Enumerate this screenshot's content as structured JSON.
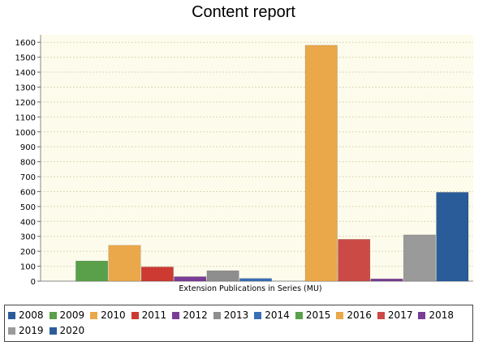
{
  "chart_data": {
    "type": "bar",
    "title": "Content report",
    "xlabel": "Extension Publications in Series (MU)",
    "ylabel": "",
    "ylim": [
      0,
      1650
    ],
    "yticks": [
      0,
      100,
      200,
      300,
      400,
      500,
      600,
      700,
      800,
      900,
      1000,
      1100,
      1200,
      1300,
      1400,
      1500,
      1600
    ],
    "grid": true,
    "legend_position": "bottom",
    "categories": [
      "Extension Publications in Series (MU)"
    ],
    "series": [
      {
        "name": "2008",
        "color": "#2a5c9a",
        "values": [
          0
        ]
      },
      {
        "name": "2009",
        "color": "#5aa04a",
        "values": [
          135
        ]
      },
      {
        "name": "2010",
        "color": "#eaa84a",
        "values": [
          240
        ]
      },
      {
        "name": "2011",
        "color": "#cc3a32",
        "values": [
          95
        ]
      },
      {
        "name": "2012",
        "color": "#7a3d96",
        "values": [
          30
        ]
      },
      {
        "name": "2013",
        "color": "#8e8e8e",
        "values": [
          70
        ]
      },
      {
        "name": "2014",
        "color": "#3a6eb5",
        "values": [
          18
        ]
      },
      {
        "name": "2015",
        "color": "#5aa04a",
        "values": [
          0
        ]
      },
      {
        "name": "2016",
        "color": "#eaa84a",
        "values": [
          1580
        ]
      },
      {
        "name": "2017",
        "color": "#cc4a45",
        "values": [
          280
        ]
      },
      {
        "name": "2018",
        "color": "#7a3d96",
        "values": [
          15
        ]
      },
      {
        "name": "2019",
        "color": "#9a9a9a",
        "values": [
          310
        ]
      },
      {
        "name": "2020",
        "color": "#2a5c9a",
        "values": [
          595
        ]
      }
    ]
  },
  "page": {
    "title": "Content report"
  }
}
